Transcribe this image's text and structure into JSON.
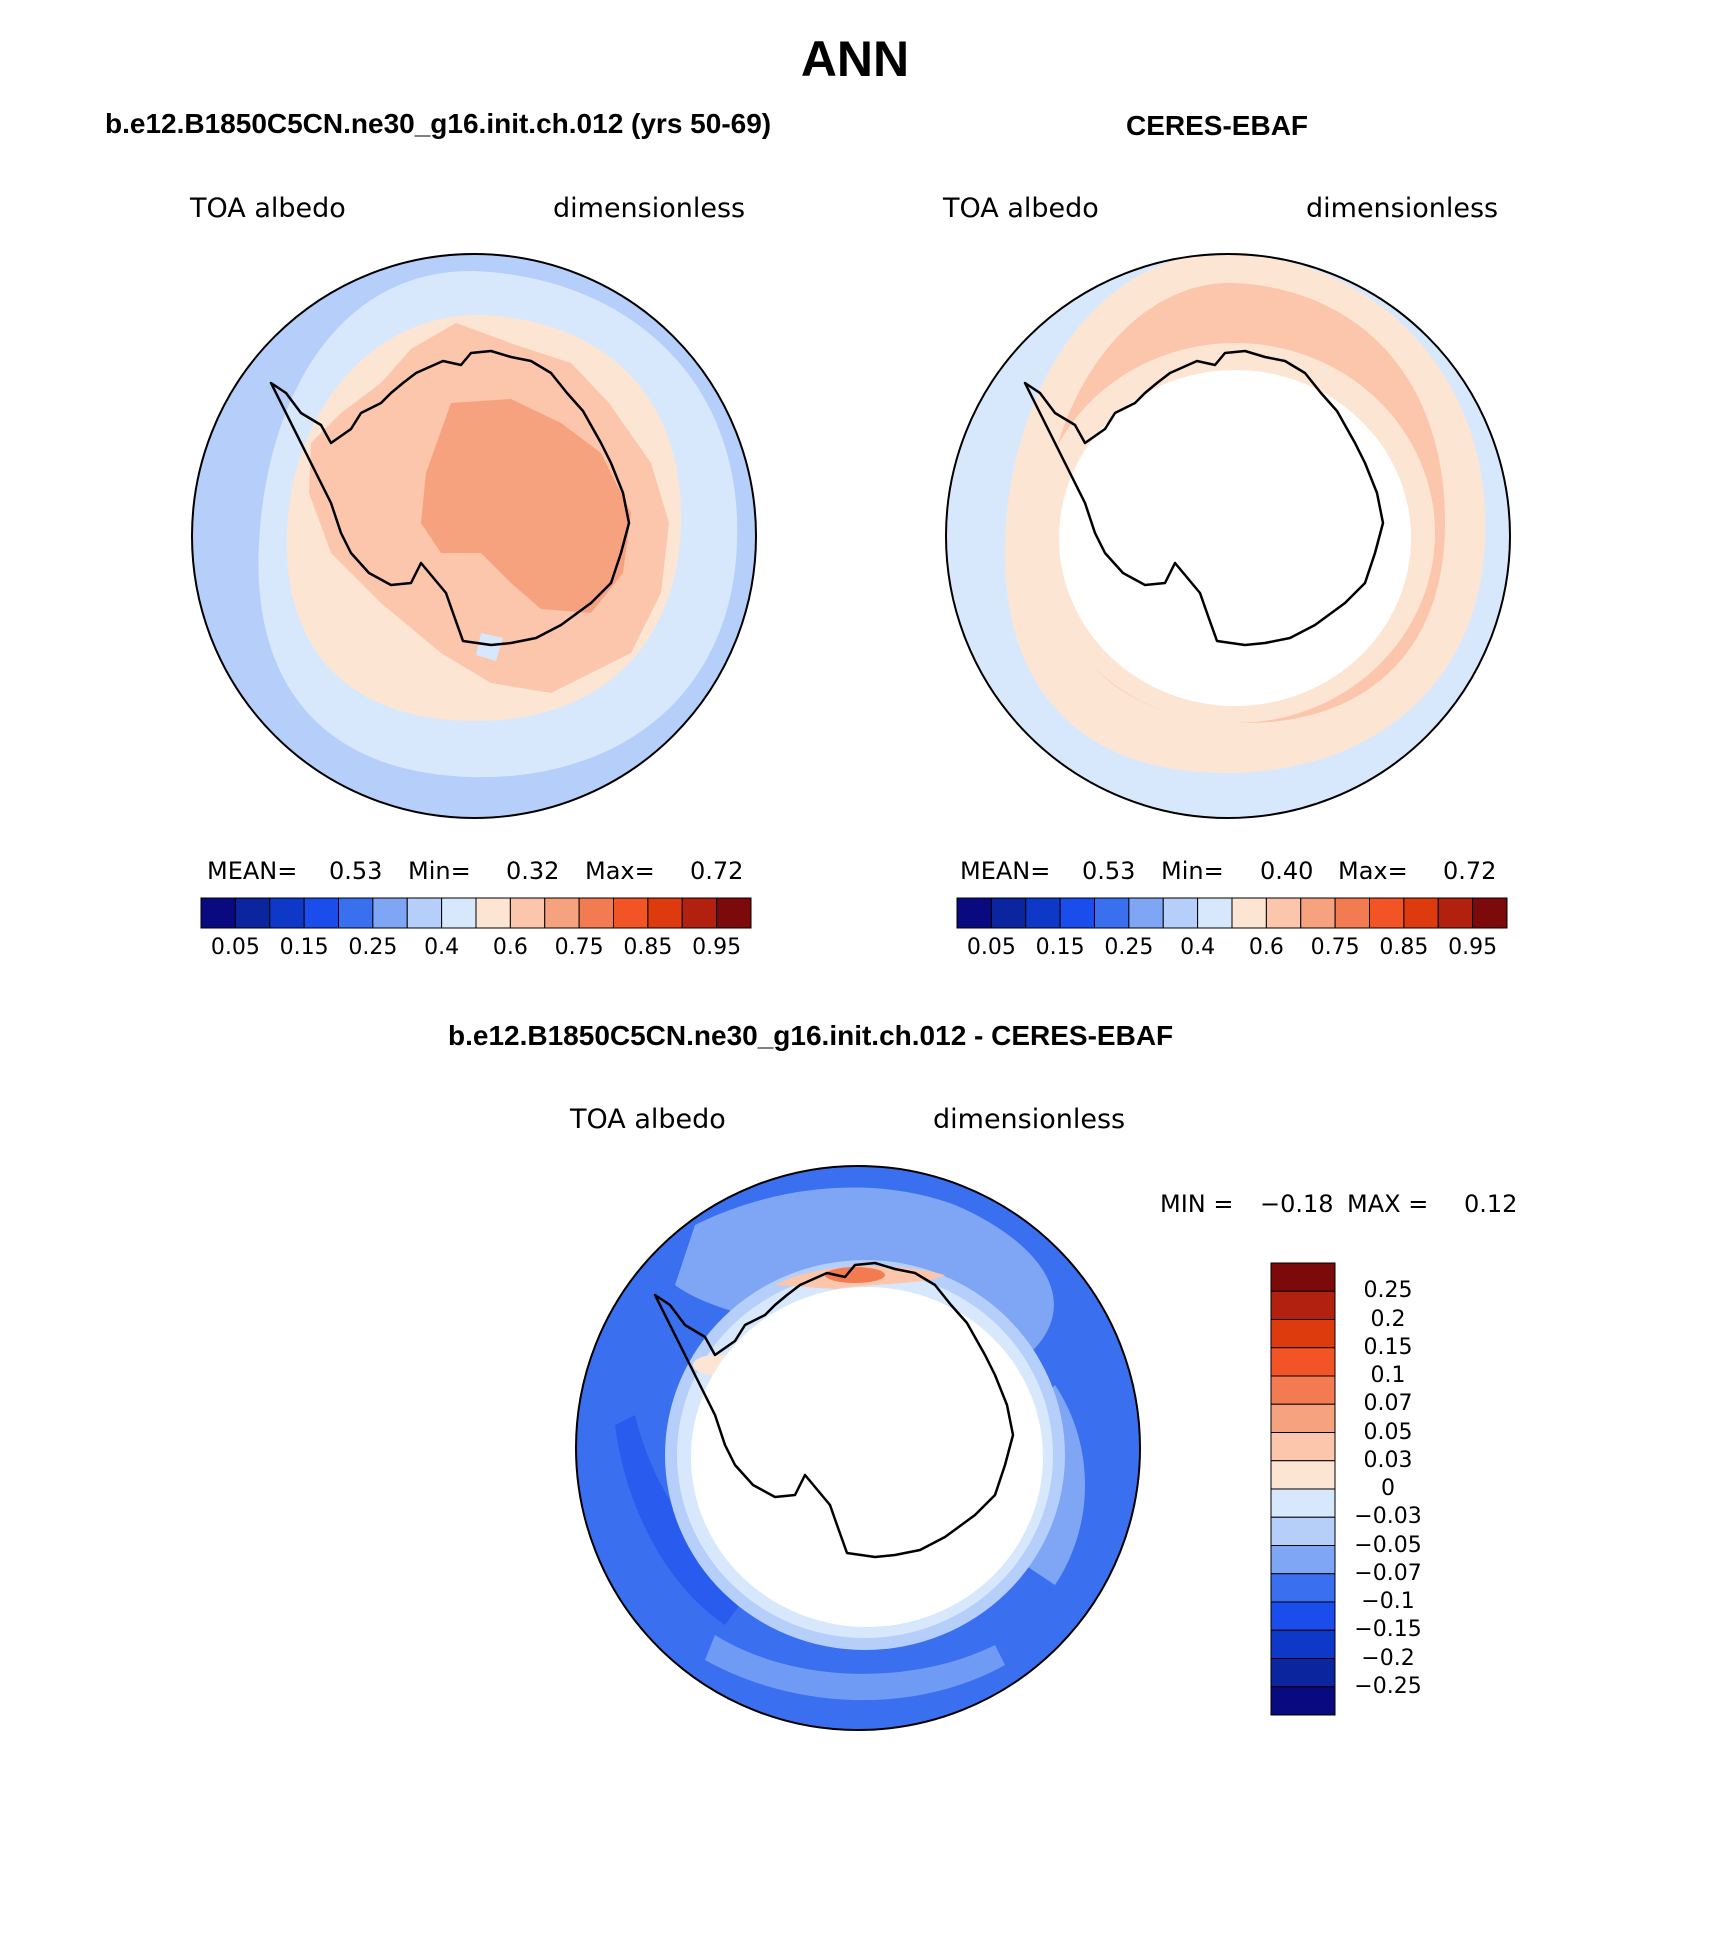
{
  "title": "ANN",
  "panels": [
    {
      "id": "model",
      "title": "b.e12.B1850C5CN.ne30_g16.init.ch.012 (yrs 50-69)",
      "left_label": "TOA albedo",
      "right_label": "dimensionless",
      "stats": {
        "mean_label": "MEAN=",
        "mean": "0.53",
        "min_label": "Min=",
        "min": "0.32",
        "max_label": "Max=",
        "max": "0.72"
      }
    },
    {
      "id": "obs",
      "title": "CERES-EBAF",
      "left_label": "TOA albedo",
      "right_label": "dimensionless",
      "stats": {
        "mean_label": "MEAN=",
        "mean": "0.53",
        "min_label": "Min=",
        "min": "0.40",
        "max_label": "Max=",
        "max": "0.72"
      }
    }
  ],
  "abs_colorbar": {
    "colors": [
      "#0a0a80",
      "#0b259e",
      "#0e38c8",
      "#1b4ded",
      "#3a70f0",
      "#7ea6f5",
      "#b6cefa",
      "#d8e8fc",
      "#fde5d3",
      "#fbc6ac",
      "#f7a27f",
      "#f37b51",
      "#f35426",
      "#dd3a0e",
      "#b22110",
      "#7d0a0a"
    ],
    "tick_labels": [
      "0.05",
      "0.15",
      "0.25",
      "0.4",
      "0.6",
      "0.75",
      "0.85",
      "0.95"
    ]
  },
  "diff_panel": {
    "title": "b.e12.B1850C5CN.ne30_g16.init.ch.012 - CERES-EBAF",
    "left_label": "TOA albedo",
    "right_label": "dimensionless",
    "minmax": {
      "min_label": "MIN =",
      "min": "−0.18",
      "max_label": "MAX =",
      "max": "0.12"
    }
  },
  "diff_colorbar": {
    "colors": [
      "#7d0a0a",
      "#b22110",
      "#dd3a0e",
      "#f35426",
      "#f37b51",
      "#f7a27f",
      "#fbc6ac",
      "#fde5d3",
      "#d8e8fc",
      "#b6cefa",
      "#7ea6f5",
      "#3a70f0",
      "#1b4ded",
      "#0e38c8",
      "#0b259e",
      "#0a0a80"
    ],
    "tick_labels": [
      "0.25",
      "0.2",
      "0.15",
      "0.1",
      "0.07",
      "0.05",
      "0.03",
      "0",
      "−0.03",
      "−0.05",
      "−0.07",
      "−0.1",
      "−0.15",
      "−0.2",
      "−0.25"
    ]
  },
  "colors": {
    "ocean_low": "#b6cefa",
    "ocean_mid": "#d8e8fc",
    "pale_orange": "#fde5d3",
    "light_orange": "#fbc6ac",
    "orange": "#f7a27f",
    "diff_deep": "#3a70f0",
    "diff_mid": "#7ea6f5",
    "coast": "#000000"
  }
}
